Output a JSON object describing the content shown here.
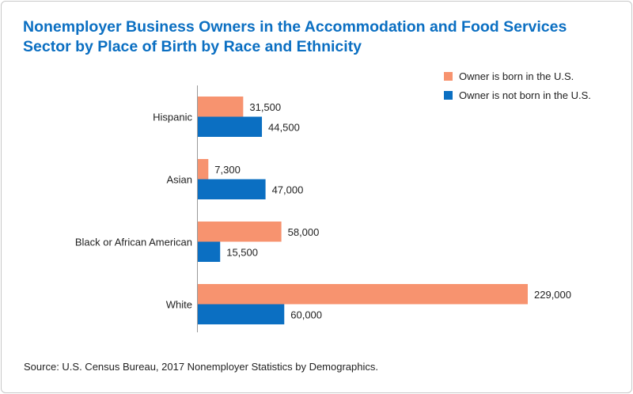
{
  "title": "Nonemployer Business Owners in the Accommodation and Food Services Sector by Place of Birth by Race and Ethnicity",
  "source": "Source: U.S. Census Bureau, 2017 Nonemployer Statistics by Demographics.",
  "chart_data": {
    "type": "bar",
    "orientation": "horizontal",
    "title": "Nonemployer Business Owners in the Accommodation and Food Services Sector by Place of Birth by Race and Ethnicity",
    "categories": [
      "Hispanic",
      "Asian",
      "Black or African American",
      "White"
    ],
    "series": [
      {
        "name": "Owner is born in the U.S.",
        "color": "#f7936f",
        "values": [
          31500,
          7300,
          58000,
          229000
        ],
        "labels": [
          "31,500",
          "7,300",
          "58,000",
          "229,000"
        ]
      },
      {
        "name": "Owner is not born in the U.S.",
        "color": "#0b6fc2",
        "values": [
          44500,
          47000,
          15500,
          60000
        ],
        "labels": [
          "44,500",
          "47,000",
          "15,500",
          "60,000"
        ]
      }
    ],
    "xlim": [
      0,
      229000
    ],
    "grid": false,
    "legend_position": "top-right"
  }
}
